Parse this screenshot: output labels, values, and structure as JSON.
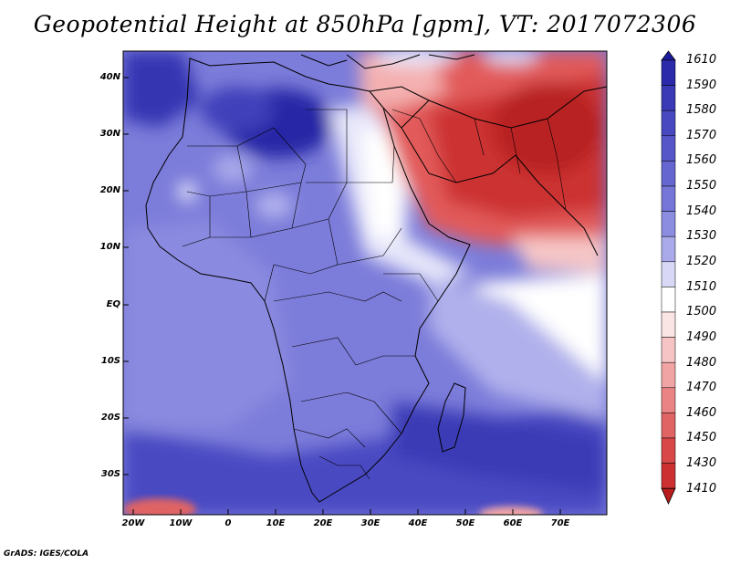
{
  "title": "Geopotential Height at 850hPa [gpm], VT: 2017072306",
  "footer": "GrADS: IGES/COLA",
  "axes": {
    "y_ticks": [
      "40N",
      "30N",
      "20N",
      "10N",
      "EQ",
      "10S",
      "20S",
      "30S"
    ],
    "x_ticks": [
      "20W",
      "10W",
      "0",
      "10E",
      "20E",
      "30E",
      "40E",
      "50E",
      "60E",
      "70E"
    ]
  },
  "colorbar": {
    "labels": [
      "1610",
      "1590",
      "1580",
      "1570",
      "1560",
      "1550",
      "1540",
      "1530",
      "1520",
      "1510",
      "1500",
      "1490",
      "1480",
      "1470",
      "1460",
      "1450",
      "1430",
      "1410"
    ],
    "colors": [
      "#1b1b9c",
      "#2a2aaa",
      "#3a3ab6",
      "#4848c0",
      "#5656c8",
      "#6666d0",
      "#7676d8",
      "#8c8ce0",
      "#aaaaea",
      "#d8d8f6",
      "#fbe4e4",
      "#f6c4c4",
      "#f0a4a4",
      "#ea8484",
      "#e06464",
      "#d84848",
      "#cc3030",
      "#b81c1c"
    ]
  }
}
